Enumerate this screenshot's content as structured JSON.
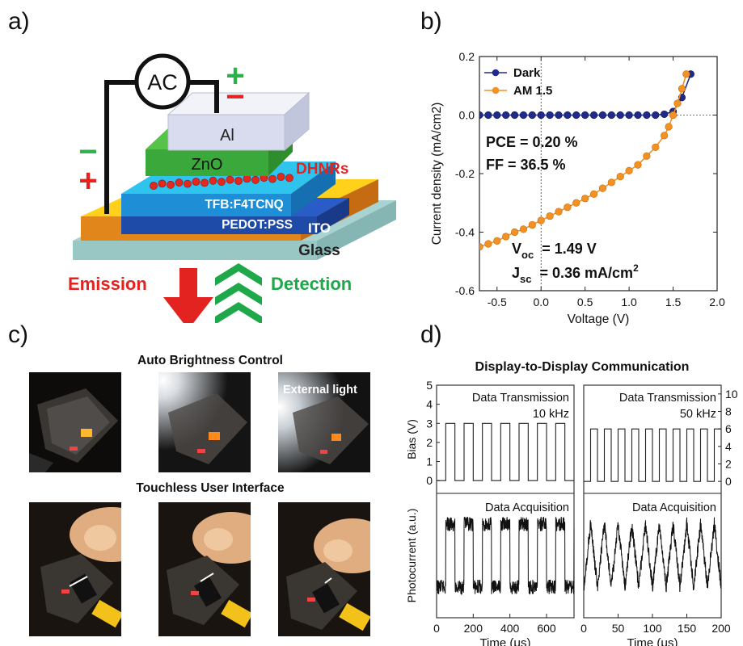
{
  "panels": {
    "a": {
      "letter": "a)"
    },
    "b": {
      "letter": "b)"
    },
    "c": {
      "letter": "c)"
    },
    "d": {
      "letter": "d)"
    }
  },
  "device": {
    "source": "AC",
    "plus_top": "+",
    "minus_top": "−",
    "minus_left": "−",
    "plus_left": "+",
    "layers": [
      "Al",
      "ZnO",
      "TFB:F4TCNQ",
      "PEDOT:PSS",
      "ITO",
      "Glass"
    ],
    "dhnrs_label": "DHNRs",
    "emission_label": "Emission",
    "detection_label": "Detection",
    "colors": {
      "plus": "#2bb24c",
      "minus": "#e32320",
      "dhnrs": "#e32320",
      "emission": "#e32320",
      "detection": "#1fa84a"
    }
  },
  "chart_data": [
    {
      "type": "scatter",
      "panel": "b",
      "xlabel": "Voltage (V)",
      "ylabel": "Current density (mA/cm2)",
      "xlim": [
        -0.7,
        2.0
      ],
      "ylim": [
        -0.6,
        0.2
      ],
      "xticks": [
        "-0.5",
        "0.0",
        "0.5",
        "1.0",
        "1.5",
        "2.0"
      ],
      "yticks": [
        "-0.6",
        "-0.4",
        "-0.2",
        "0.0",
        "0.2"
      ],
      "legend_position": "top-left",
      "series": [
        {
          "name": "Dark",
          "color": "#1f2a8a",
          "x": [
            -0.7,
            -0.6,
            -0.5,
            -0.4,
            -0.3,
            -0.2,
            -0.1,
            0.0,
            0.1,
            0.2,
            0.3,
            0.4,
            0.5,
            0.6,
            0.7,
            0.8,
            0.9,
            1.0,
            1.1,
            1.2,
            1.3,
            1.4,
            1.5,
            1.6,
            1.7
          ],
          "y": [
            0,
            0,
            0,
            0,
            0,
            0,
            0,
            0,
            0,
            0,
            0,
            0,
            0,
            0,
            0,
            0,
            0,
            0,
            0,
            0,
            0,
            0.003,
            0.012,
            0.06,
            0.14
          ]
        },
        {
          "name": "AM 1.5",
          "color": "#f39222",
          "x": [
            -0.7,
            -0.6,
            -0.5,
            -0.4,
            -0.3,
            -0.2,
            -0.1,
            0.0,
            0.1,
            0.2,
            0.3,
            0.4,
            0.5,
            0.6,
            0.7,
            0.8,
            0.9,
            1.0,
            1.1,
            1.2,
            1.3,
            1.4,
            1.45,
            1.5,
            1.55,
            1.6,
            1.65
          ],
          "y": [
            -0.45,
            -0.44,
            -0.43,
            -0.415,
            -0.4,
            -0.39,
            -0.375,
            -0.36,
            -0.345,
            -0.33,
            -0.315,
            -0.3,
            -0.285,
            -0.27,
            -0.25,
            -0.23,
            -0.21,
            -0.19,
            -0.17,
            -0.14,
            -0.11,
            -0.07,
            -0.04,
            0.0,
            0.04,
            0.09,
            0.14
          ]
        }
      ],
      "annotations": {
        "pce": "PCE = 0.20 %",
        "ff": "FF   = 36.5 %",
        "voc_sym": "V",
        "voc_sub": "oc",
        "voc_val": "= 1.49 V",
        "jsc_sym": "J",
        "jsc_sub": "sc",
        "jsc_val": "= 0.36 mA/cm",
        "jsc_sup": "2"
      }
    },
    {
      "type": "line",
      "panel": "d-left",
      "title": "Display-to-Display Communication",
      "top_label_1": "Data Transmission",
      "top_label_2": "10 kHz",
      "bottom_label": "Data Acquisition",
      "xlabel": "Time (μs)",
      "ylabel_top": "Bias (V)",
      "ylabel_bottom": "Photocurrent (a.u.)",
      "xlim": [
        0,
        750
      ],
      "xticks": [
        "0",
        "200",
        "400",
        "600"
      ],
      "ylim_top": [
        -0.5,
        5
      ],
      "yticks_top": [
        "0",
        "1",
        "2",
        "3",
        "4",
        "5"
      ],
      "frequency_khz": 10,
      "bias_high": 3,
      "bias_low": 0
    },
    {
      "type": "line",
      "panel": "d-right",
      "top_label_1": "Data Transmission",
      "top_label_2": "50 kHz",
      "bottom_label": "Data Acquisition",
      "xlabel": "Time (μs)",
      "xlim": [
        0,
        200
      ],
      "xticks": [
        "0",
        "50",
        "100",
        "150",
        "200"
      ],
      "ylim_top": [
        -1,
        11
      ],
      "yticks_top": [
        "0",
        "2",
        "4",
        "6",
        "8",
        "10"
      ],
      "frequency_khz": 50,
      "bias_high": 6,
      "bias_low": 0
    }
  ],
  "photos": {
    "auto_title": "Auto Brightness Control",
    "external_light_label": "External light",
    "touchless_title": "Touchless User Interface"
  }
}
